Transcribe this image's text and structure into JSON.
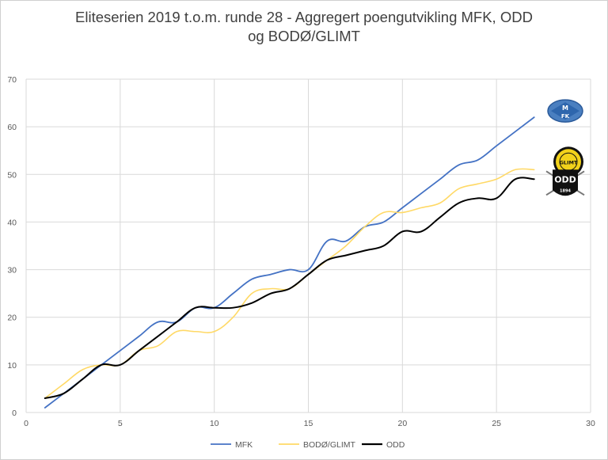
{
  "chart_data": {
    "type": "line",
    "title_line1": "Eliteserien 2019 t.o.m. runde 28 - Aggregert poengutvikling MFK, ODD",
    "title_line2": "og BODØ/GLIMT",
    "xlim": [
      0,
      30
    ],
    "ylim": [
      0,
      70
    ],
    "x_ticks": [
      0,
      5,
      10,
      15,
      20,
      25,
      30
    ],
    "y_ticks": [
      0,
      10,
      20,
      30,
      40,
      50,
      60,
      70
    ],
    "grid": true,
    "legend_position": "bottom-center",
    "x": [
      1,
      2,
      3,
      4,
      5,
      6,
      7,
      8,
      9,
      10,
      11,
      12,
      13,
      14,
      15,
      16,
      17,
      18,
      19,
      20,
      21,
      22,
      23,
      24,
      25,
      26,
      27
    ],
    "series": [
      {
        "name": "MFK",
        "color": "#4472c4",
        "values": [
          1,
          4,
          7,
          10,
          13,
          16,
          19,
          19,
          22,
          22,
          25,
          28,
          29,
          30,
          30,
          36,
          36,
          39,
          40,
          43,
          46,
          49,
          52,
          53,
          56,
          59,
          62
        ]
      },
      {
        "name": "BODØ/GLIMT",
        "color": "#ffd966",
        "values": [
          3,
          6,
          9,
          10,
          10,
          13,
          14,
          17,
          17,
          17,
          20,
          25,
          26,
          26,
          29,
          32,
          35,
          39,
          42,
          42,
          43,
          44,
          47,
          48,
          49,
          51,
          51
        ]
      },
      {
        "name": "ODD",
        "color": "#000000",
        "values": [
          3,
          4,
          7,
          10,
          10,
          13,
          16,
          19,
          22,
          22,
          22,
          23,
          25,
          26,
          29,
          32,
          33,
          34,
          35,
          38,
          38,
          41,
          44,
          45,
          45,
          49,
          49
        ]
      }
    ],
    "logos": [
      {
        "series": "MFK",
        "text_top": "M",
        "text_bottom": "FK",
        "color": "#4a7fc0"
      },
      {
        "series": "BODØ/GLIMT",
        "text": "GLIMT",
        "color": "#f2d21b"
      },
      {
        "series": "ODD",
        "text": "ODD",
        "year": "1894",
        "color": "#111111"
      }
    ]
  }
}
